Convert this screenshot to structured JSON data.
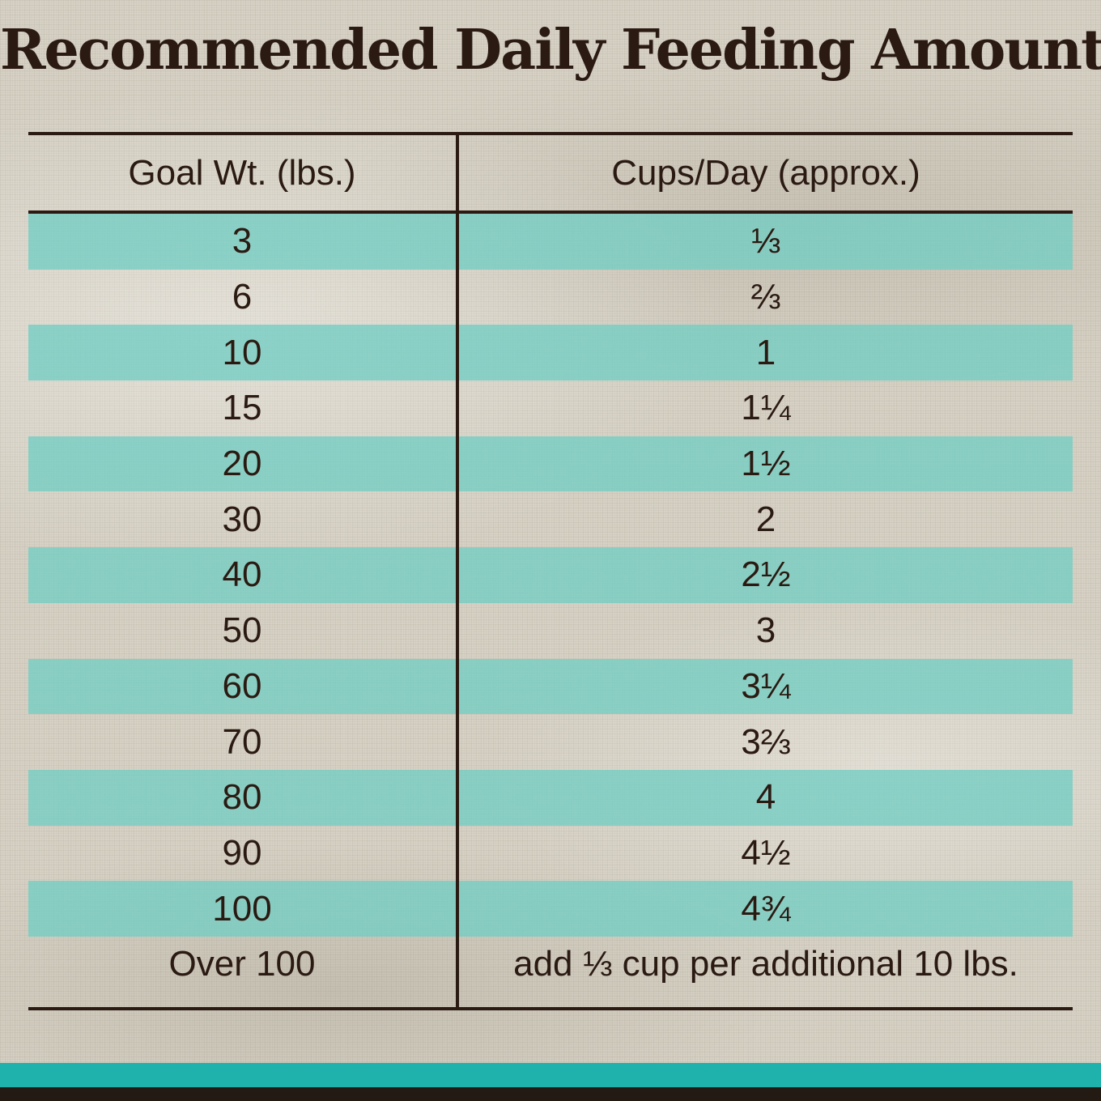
{
  "title": "Recommended Daily Feeding Amounts:",
  "table": {
    "headers": [
      "Goal Wt. (lbs.)",
      "Cups/Day (approx.)"
    ],
    "rows": [
      [
        "3",
        "⅓"
      ],
      [
        "6",
        "⅔"
      ],
      [
        "10",
        "1"
      ],
      [
        "15",
        "1¼"
      ],
      [
        "20",
        "1½"
      ],
      [
        "30",
        "2"
      ],
      [
        "40",
        "2½"
      ],
      [
        "50",
        "3"
      ],
      [
        "60",
        "3¼"
      ],
      [
        "70",
        "3⅔"
      ],
      [
        "80",
        "4"
      ],
      [
        "90",
        "4½"
      ],
      [
        "100",
        "4¾"
      ],
      [
        "Over 100",
        "add ⅓ cup per additional 10 lbs."
      ]
    ]
  },
  "colors": {
    "text": "#2a1a12",
    "stripe": "#73cdc3",
    "bar": "#1fb2ad",
    "background": "#d8d3c6"
  }
}
